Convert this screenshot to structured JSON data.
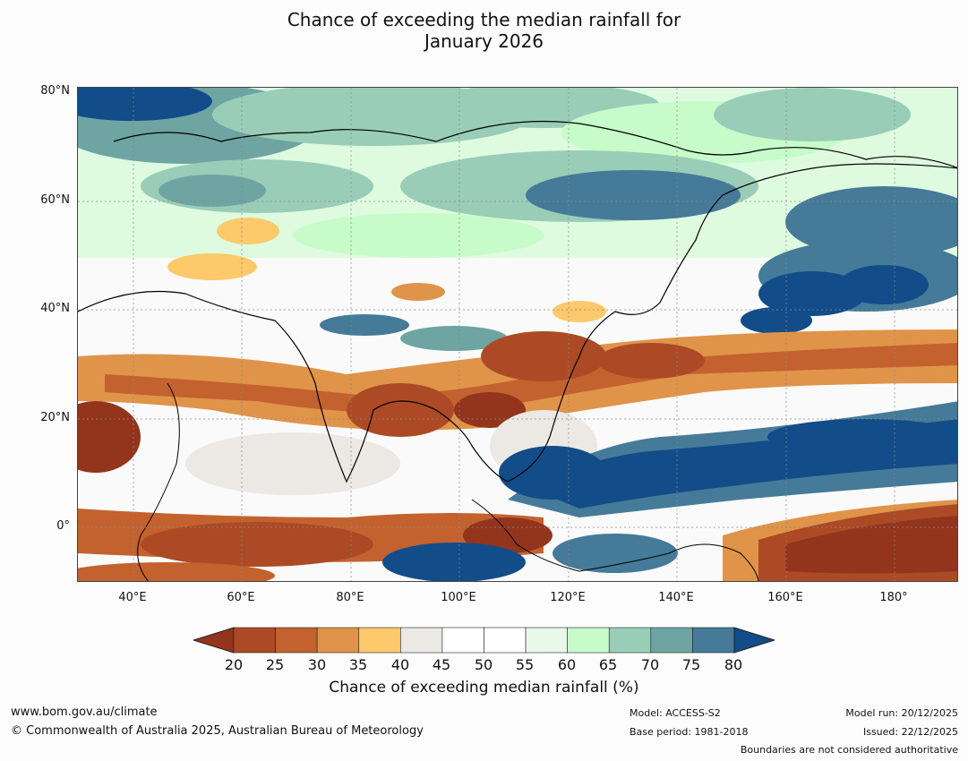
{
  "title_line1": "Chance of exceeding the median rainfall for",
  "title_line2": "January 2026",
  "lat_labels": [
    "80°N",
    "60°N",
    "40°N",
    "20°N",
    "0°"
  ],
  "lon_labels": [
    "40°E",
    "60°E",
    "80°E",
    "100°E",
    "120°E",
    "140°E",
    "160°E",
    "180°"
  ],
  "colorbar": {
    "title": "Chance of exceeding median rainfall (%)",
    "ticks": [
      "20",
      "25",
      "30",
      "35",
      "40",
      "45",
      "50",
      "55",
      "60",
      "65",
      "70",
      "75",
      "80"
    ],
    "colors": [
      "#93341d",
      "#ad4a26",
      "#c4622f",
      "#e0944a",
      "#fdc96a",
      "#ece9e4",
      "#ffffff",
      "#ffffff",
      "#e9f6ea",
      "#c7fcca",
      "#9acdb8",
      "#6ea4a2",
      "#457a98",
      "#124d89"
    ],
    "under_color": "#93341d",
    "over_color": "#124d89"
  },
  "footer": {
    "website": "www.bom.gov.au/climate",
    "copyright": "© Commonwealth of Australia 2025, Australian Bureau of Meteorology",
    "model": "Model: ACCESS-S2",
    "base_period": "Base period: 1981-2018",
    "model_run": "Model run: 20/12/2025",
    "issued": "Issued: 22/12/2025",
    "disclaimer": "Boundaries are not considered authoritative"
  }
}
